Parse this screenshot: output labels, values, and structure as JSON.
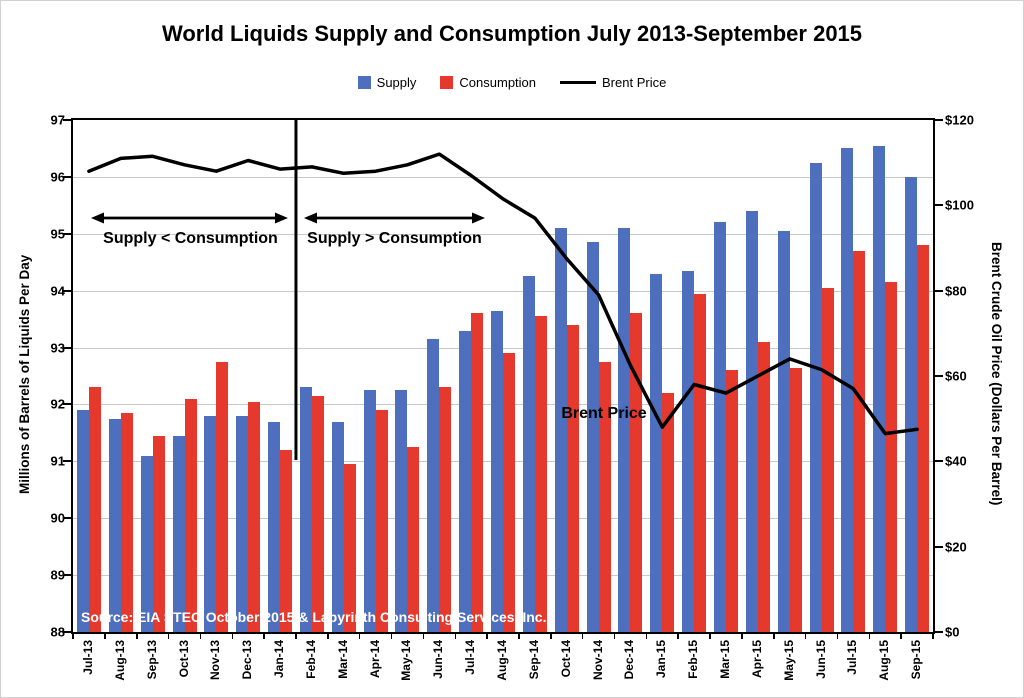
{
  "title": "World Liquids Supply and Consumption July 2013-September 2015",
  "legend": [
    {
      "label": "Supply",
      "type": "box",
      "color": "#4E6FBE"
    },
    {
      "label": "Consumption",
      "type": "box",
      "color": "#E5392E"
    },
    {
      "label": "Brent Price",
      "type": "line",
      "color": "#000000"
    }
  ],
  "annotations": {
    "left_arrow_label": "Supply < Consumption",
    "right_arrow_label": "Supply > Consumption",
    "line_label": "Brent Price",
    "source": "Source:  EIA STEO October 2015 & Labyrinth Consulting Services, Inc."
  },
  "chart_data": {
    "type": "bar+line",
    "title": "World Liquids Supply and Consumption July 2013-September 2015",
    "categories": [
      "Jul-13",
      "Aug-13",
      "Sep-13",
      "Oct-13",
      "Nov-13",
      "Dec-13",
      "Jan-14",
      "Feb-14",
      "Mar-14",
      "Apr-14",
      "May-14",
      "Jun-14",
      "Jul-14",
      "Aug-14",
      "Sep-14",
      "Oct-14",
      "Nov-14",
      "Dec-14",
      "Jan-15",
      "Feb-15",
      "Mar-15",
      "Apr-15",
      "May-15",
      "Jun-15",
      "Jul-15",
      "Aug-15",
      "Sep-15"
    ],
    "series": [
      {
        "name": "Supply",
        "type": "bar",
        "axis": "left",
        "color": "#4E6FBE",
        "values": [
          91.9,
          91.75,
          91.1,
          91.45,
          91.8,
          91.8,
          91.7,
          92.3,
          91.7,
          92.25,
          92.25,
          93.15,
          93.3,
          93.65,
          94.25,
          95.1,
          94.85,
          95.1,
          94.3,
          94.35,
          95.2,
          95.4,
          95.05,
          96.25,
          96.5,
          96.55,
          96
        ]
      },
      {
        "name": "Consumption",
        "type": "bar",
        "axis": "left",
        "color": "#E5392E",
        "values": [
          92.3,
          91.85,
          91.45,
          92.1,
          92.75,
          92.05,
          91.2,
          92.15,
          90.95,
          91.9,
          91.25,
          92.3,
          93.6,
          92.9,
          93.55,
          93.4,
          92.75,
          93.6,
          92.2,
          93.95,
          92.6,
          93.1,
          92.65,
          94.05,
          94.7,
          94.15,
          94.8
        ]
      },
      {
        "name": "Brent Price",
        "type": "line",
        "axis": "right",
        "color": "#000000",
        "values": [
          108,
          111,
          111.5,
          109.5,
          108,
          110.5,
          108.5,
          109,
          107.5,
          108,
          109.5,
          112,
          107,
          101.5,
          97,
          87.5,
          79,
          62.5,
          48,
          58,
          56,
          60,
          64,
          61.5,
          57,
          46.5,
          47.5
        ]
      }
    ],
    "left_axis": {
      "label": "Millions of Barrels of Liquids Per Day",
      "min": 88,
      "max": 97,
      "step": 1,
      "ticks": [
        88,
        89,
        90,
        91,
        92,
        93,
        94,
        95,
        96,
        97
      ]
    },
    "right_axis": {
      "label": "Brent Crude Oil Price (Dollars Per Barrel)",
      "min": 0,
      "max": 120,
      "step": 20,
      "ticks": [
        "$0",
        "$20",
        "$40",
        "$60",
        "$80",
        "$100",
        "$120"
      ]
    },
    "divider_after_category": "Jan-14",
    "grid": true,
    "legend_position": "top"
  }
}
